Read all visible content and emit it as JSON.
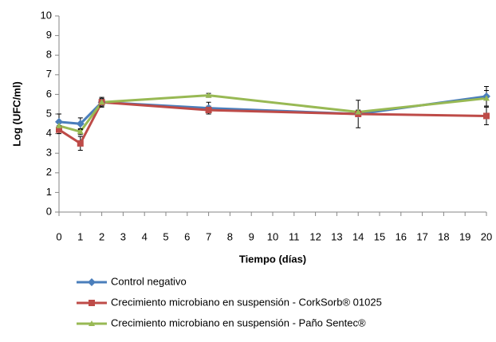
{
  "chart_data": {
    "type": "line",
    "xlabel": "Tiempo (días)",
    "ylabel": "Log (UFC/ml)",
    "x": [
      0,
      1,
      2,
      7,
      14,
      20
    ],
    "series": [
      {
        "name": "Control negativo",
        "color": "#4a7ebb",
        "marker": "diamond",
        "values": [
          4.6,
          4.5,
          5.6,
          5.3,
          5.0,
          5.9
        ],
        "errors": [
          0.4,
          0.3,
          0.25,
          0.3,
          0.7,
          0.5
        ]
      },
      {
        "name": "Crecimiento microbiano en suspensión  - CorkSorb® 01025",
        "color": "#be4b48",
        "marker": "square",
        "values": [
          4.2,
          3.5,
          5.6,
          5.2,
          5.0,
          4.9
        ],
        "errors": [
          0.2,
          0.35,
          0.2,
          0.2,
          0.1,
          0.45
        ]
      },
      {
        "name": "Crecimiento microbiano en suspensión  - Paño Sentec®",
        "color": "#98b954",
        "marker": "triangle",
        "values": [
          4.4,
          4.1,
          5.6,
          5.95,
          5.1,
          5.8
        ],
        "errors": [
          0.15,
          0.15,
          0.15,
          0.1,
          0.1,
          0.4
        ]
      }
    ],
    "xlim": [
      0,
      20
    ],
    "xticks": [
      0,
      1,
      2,
      3,
      4,
      5,
      6,
      7,
      8,
      9,
      10,
      11,
      12,
      13,
      14,
      15,
      16,
      17,
      18,
      19,
      20
    ],
    "ylim": [
      0,
      10
    ],
    "yticks": [
      0,
      1,
      2,
      3,
      4,
      5,
      6,
      7,
      8,
      9,
      10
    ],
    "grid": false
  }
}
